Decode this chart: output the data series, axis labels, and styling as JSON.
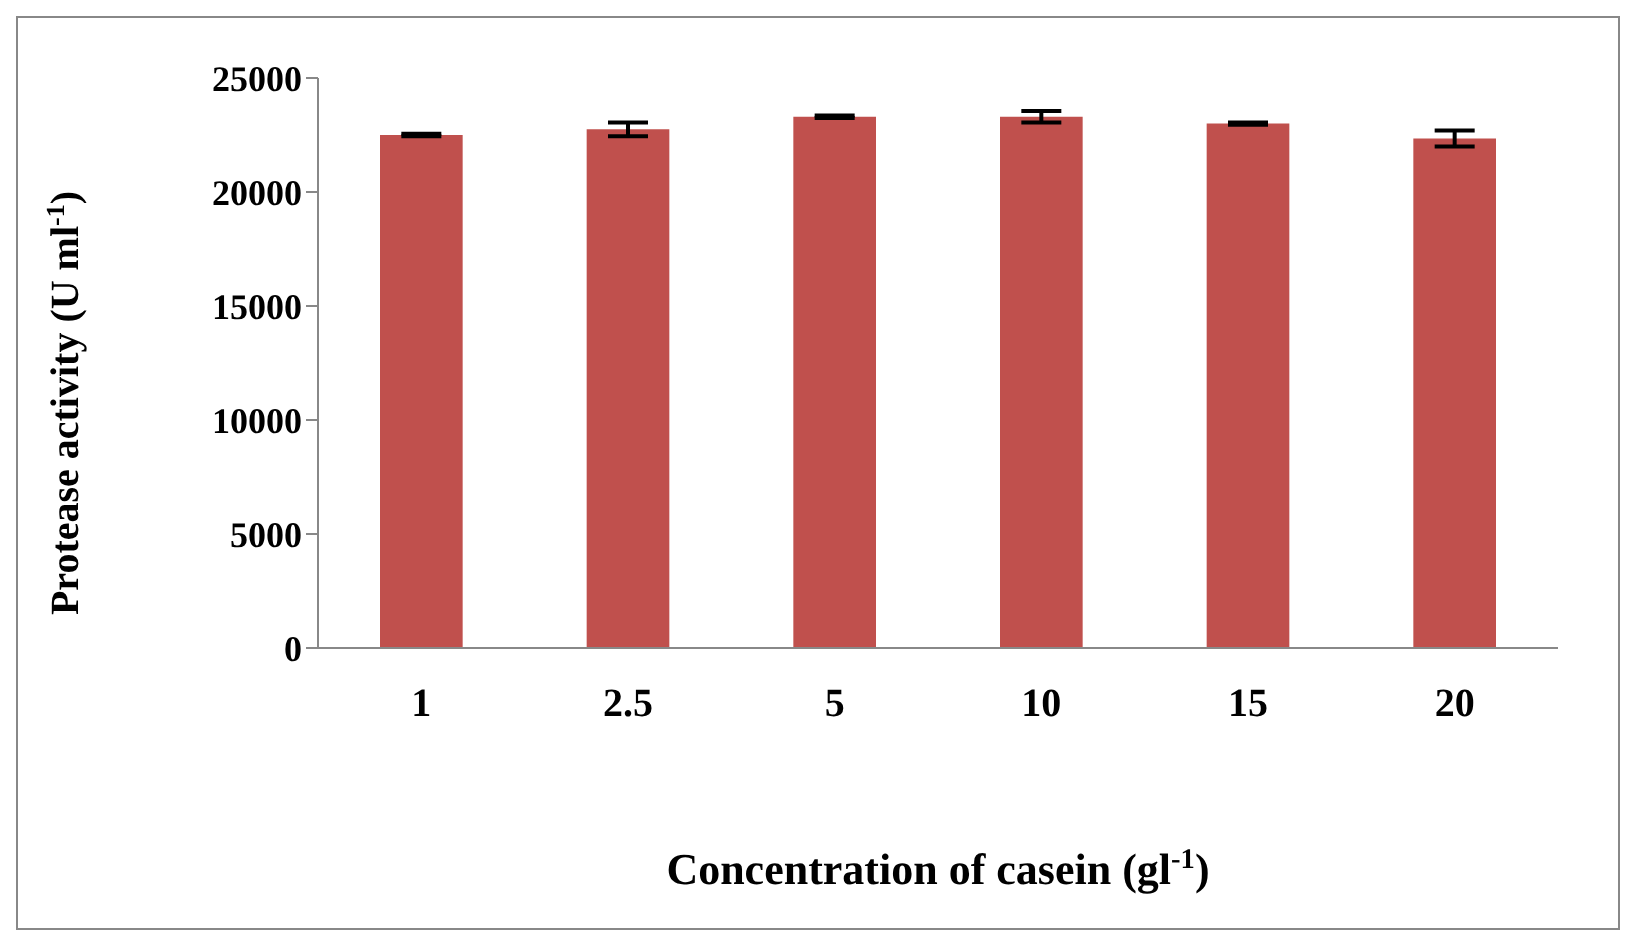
{
  "chart_data": {
    "type": "bar",
    "xlabel": "Concentration of casein (gl$^{-1}$)",
    "ylabel": "Protease activity (U ml$^{-1}$)",
    "categories": [
      "1",
      "2.5",
      "5",
      "10",
      "15",
      "20"
    ],
    "values": [
      22500,
      22750,
      23300,
      23300,
      23000,
      22350
    ],
    "errors": [
      50,
      300,
      50,
      250,
      50,
      350
    ],
    "color": "#c0504d",
    "ylim": [
      0,
      25000
    ],
    "yticks": [
      0,
      5000,
      10000,
      15000,
      20000,
      25000
    ]
  }
}
